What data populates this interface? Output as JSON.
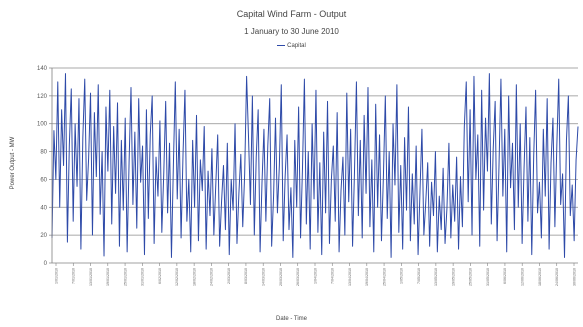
{
  "chart_data": {
    "type": "line",
    "title": "Capital Wind Farm - Output",
    "subtitle": "1 January to 30 June 2010",
    "legend_label": "Capital",
    "legend_position": "top-center",
    "xlabel": "Date - Time",
    "ylabel": "Power Output - MW",
    "ylim": [
      0,
      140
    ],
    "yticks": [
      0,
      20,
      40,
      60,
      80,
      100,
      120,
      140
    ],
    "grid": true,
    "series": [
      {
        "name": "Capital",
        "color": "#2e4aa8",
        "values": [
          18,
          95,
          60,
          130,
          40,
          110,
          70,
          136,
          15,
          85,
          125,
          30,
          100,
          55,
          118,
          10,
          90,
          132,
          45,
          75,
          122,
          20,
          108,
          62,
          128,
          35,
          80,
          5,
          112,
          66,
          124,
          28,
          98,
          50,
          115,
          12,
          88,
          38,
          104,
          8,
          72,
          126,
          42,
          94,
          25,
          118,
          58,
          84,
          6,
          110,
          32,
          92,
          120,
          14,
          76,
          48,
          102,
          22,
          64,
          116,
          36,
          86,
          4,
          70,
          130,
          46,
          96,
          18,
          78,
          124,
          30,
          60,
          8,
          88,
          40,
          106,
          16,
          74,
          52,
          98,
          10,
          66,
          34,
          82,
          20,
          56,
          92,
          12,
          44,
          70,
          24,
          86,
          6,
          60,
          38,
          100,
          14,
          50,
          78,
          26,
          64,
          134,
          90,
          42,
          120,
          20,
          76,
          110,
          8,
          58,
          96,
          30,
          84,
          118,
          12,
          48,
          104,
          36,
          70,
          128,
          16,
          62,
          92,
          24,
          54,
          4,
          88,
          40,
          112,
          18,
          68,
          132,
          28,
          80,
          10,
          100,
          46,
          124,
          22,
          72,
          6,
          94,
          36,
          116,
          14,
          60,
          84,
          30,
          108,
          8,
          52,
          76,
          20,
          122,
          44,
          96,
          12,
          66,
          130,
          34,
          88,
          18,
          106,
          50,
          126,
          26,
          74,
          8,
          114,
          40,
          92,
          16,
          62,
          120,
          32,
          80,
          4,
          100,
          56,
          128,
          22,
          70,
          10,
          90,
          38,
          112,
          16,
          64,
          28,
          84,
          6,
          52,
          96,
          20,
          44,
          72,
          12,
          58,
          34,
          80,
          8,
          48,
          24,
          68,
          14,
          40,
          86,
          18,
          56,
          30,
          76,
          10,
          62,
          26,
          98,
          130,
          44,
          110,
          20,
          134,
          60,
          92,
          12,
          124,
          38,
          104,
          66,
          136,
          28,
          82,
          116,
          16,
          70,
          132,
          48,
          96,
          8,
          120,
          54,
          86,
          24,
          128,
          40,
          100,
          14,
          68,
          112,
          30,
          90,
          6,
          76,
          124,
          36,
          58,
          18,
          96,
          48,
          118,
          10,
          72,
          104,
          26,
          84,
          132,
          42,
          64,
          4,
          88,
          120,
          34,
          56,
          16,
          74,
          98
        ]
      }
    ],
    "date_labels": [
      "1/01/2010",
      "7/01/2010",
      "13/01/2010",
      "19/01/2010",
      "25/01/2010",
      "31/01/2010",
      "6/02/2010",
      "12/02/2010",
      "18/02/2010",
      "24/02/2010",
      "2/03/2010",
      "8/03/2010",
      "14/03/2010",
      "20/03/2010",
      "26/03/2010",
      "1/04/2010",
      "7/04/2010",
      "13/04/2010",
      "19/04/2010",
      "25/04/2010",
      "1/05/2010",
      "7/05/2010",
      "13/05/2010",
      "19/05/2010",
      "25/05/2010",
      "31/05/2010",
      "6/06/2010",
      "12/06/2010",
      "18/06/2010",
      "24/06/2010",
      "30/06/2010"
    ]
  }
}
